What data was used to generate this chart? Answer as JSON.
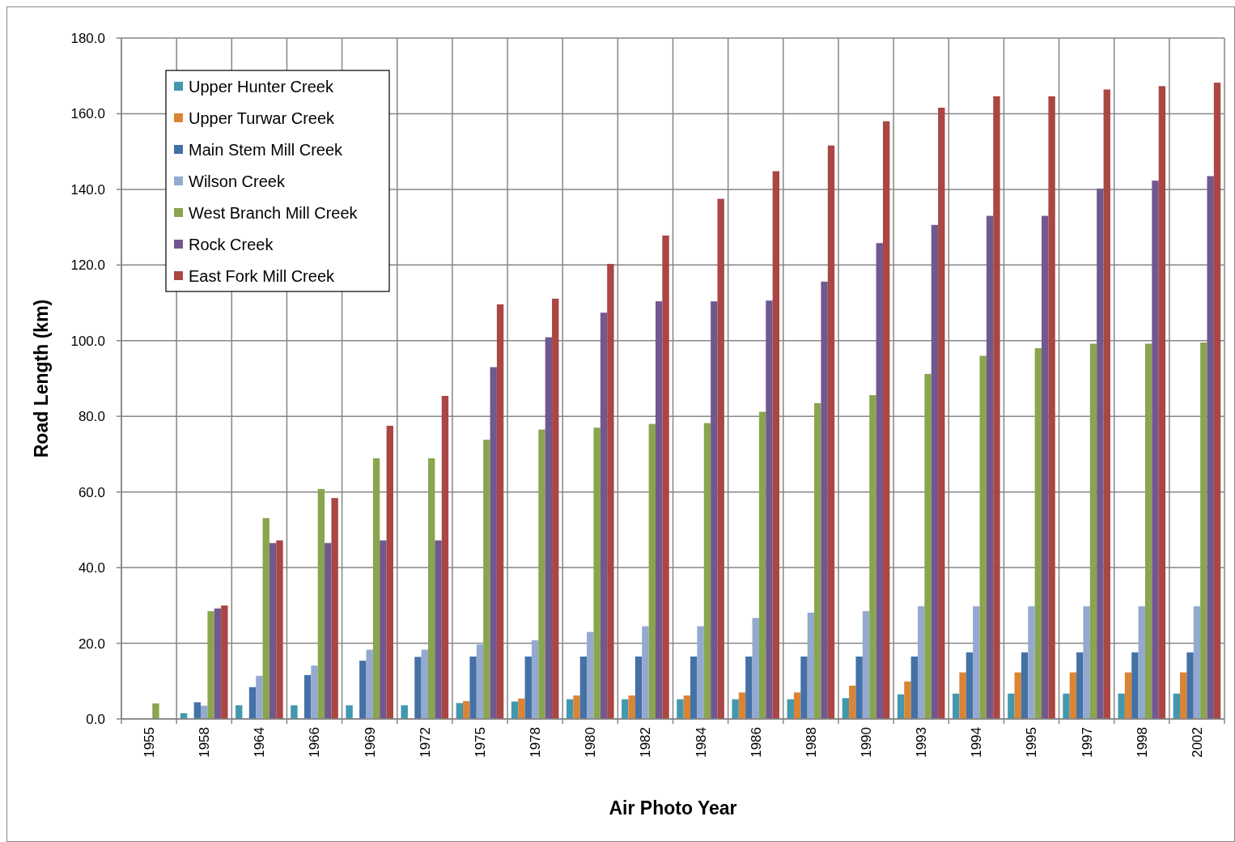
{
  "chart_data": {
    "type": "bar",
    "xlabel": "Air Photo Year",
    "ylabel": "Road Length (km)",
    "categories": [
      "1955",
      "1958",
      "1964",
      "1966",
      "1969",
      "1972",
      "1975",
      "1978",
      "1980",
      "1982",
      "1984",
      "1986",
      "1988",
      "1990",
      "1993",
      "1994",
      "1995",
      "1997",
      "1998",
      "2002"
    ],
    "series": [
      {
        "name": "Upper Hunter Creek",
        "color": "#4198af",
        "values": [
          null,
          1.5,
          3.6,
          3.6,
          3.6,
          3.6,
          4.2,
          4.6,
          5.2,
          5.2,
          5.2,
          5.2,
          5.2,
          5.5,
          6.5,
          6.7,
          6.7,
          6.7,
          6.7,
          6.7
        ]
      },
      {
        "name": "Upper Turwar Creek",
        "color": "#db8433",
        "values": [
          null,
          null,
          null,
          null,
          null,
          null,
          4.7,
          5.4,
          6.2,
          6.2,
          6.2,
          7.0,
          7.0,
          8.8,
          9.9,
          12.3,
          12.3,
          12.3,
          12.3,
          12.3
        ]
      },
      {
        "name": "Main Stem Mill Creek",
        "color": "#4471a6",
        "values": [
          null,
          4.4,
          8.4,
          11.6,
          15.4,
          16.4,
          16.5,
          16.5,
          16.5,
          16.5,
          16.5,
          16.5,
          16.5,
          16.5,
          16.5,
          17.6,
          17.6,
          17.6,
          17.6,
          17.6
        ]
      },
      {
        "name": "Wilson Creek",
        "color": "#93a9d0",
        "values": [
          null,
          3.5,
          11.4,
          14.1,
          18.3,
          18.3,
          19.7,
          20.8,
          23.0,
          24.5,
          24.5,
          26.7,
          28.1,
          28.5,
          29.8,
          29.8,
          29.8,
          29.8,
          29.8,
          29.8
        ]
      },
      {
        "name": "West Branch Mill Creek",
        "color": "#89a54e",
        "values": [
          4.1,
          28.5,
          53.1,
          60.8,
          68.9,
          68.9,
          73.8,
          76.5,
          77.0,
          78.0,
          78.2,
          81.2,
          83.5,
          85.6,
          91.2,
          96.0,
          98.0,
          99.2,
          99.2,
          99.5
        ]
      },
      {
        "name": "Rock Creek",
        "color": "#71588f",
        "values": [
          null,
          29.2,
          46.5,
          46.5,
          47.2,
          47.2,
          93.0,
          100.9,
          107.4,
          110.4,
          110.4,
          110.6,
          115.6,
          125.8,
          130.6,
          133.0,
          133.0,
          140.2,
          142.3,
          143.5
        ]
      },
      {
        "name": "East Fork Mill Creek",
        "color": "#aa4643",
        "values": [
          null,
          30.0,
          47.2,
          58.4,
          77.5,
          85.4,
          109.6,
          111.1,
          120.3,
          127.8,
          137.5,
          144.8,
          151.6,
          158.0,
          161.6,
          164.6,
          164.6,
          166.4,
          167.3,
          168.2
        ]
      }
    ],
    "ylim": [
      0,
      180
    ],
    "yticks": [
      {
        "value": 0,
        "label": "0.0"
      },
      {
        "value": 20,
        "label": "20.0"
      },
      {
        "value": 40,
        "label": "40.0"
      },
      {
        "value": 60,
        "label": "60.0"
      },
      {
        "value": 80,
        "label": "80.0"
      },
      {
        "value": 100,
        "label": "100.0"
      },
      {
        "value": 120,
        "label": "120.0"
      },
      {
        "value": 140,
        "label": "140.0"
      },
      {
        "value": 160,
        "label": "160.0"
      },
      {
        "value": 180,
        "label": "180.0"
      }
    ],
    "grid": true,
    "legend": "top left"
  }
}
